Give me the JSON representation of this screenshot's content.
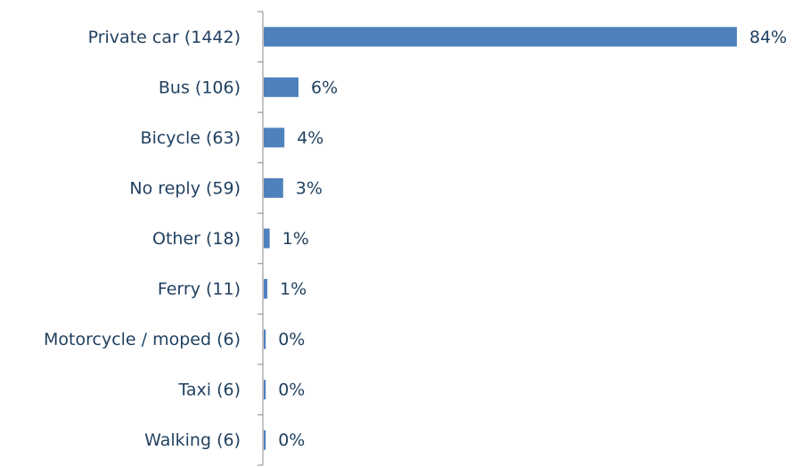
{
  "chart_data": {
    "type": "bar",
    "orientation": "horizontal",
    "categories": [
      "Private car (1442)",
      "Bus (106)",
      "Bicycle (63)",
      "No reply (59)",
      "Other (18)",
      "Ferry (11)",
      "Motorcycle / moped (6)",
      "Taxi (6)",
      "Walking (6)"
    ],
    "values": [
      83.98,
      6.17,
      3.67,
      3.44,
      1.05,
      0.64,
      0.35,
      0.35,
      0.35
    ],
    "value_labels": [
      "84%",
      "6%",
      "4%",
      "3%",
      "1%",
      "1%",
      "0%",
      "0%",
      "0%"
    ],
    "color": "#4f81bd"
  }
}
